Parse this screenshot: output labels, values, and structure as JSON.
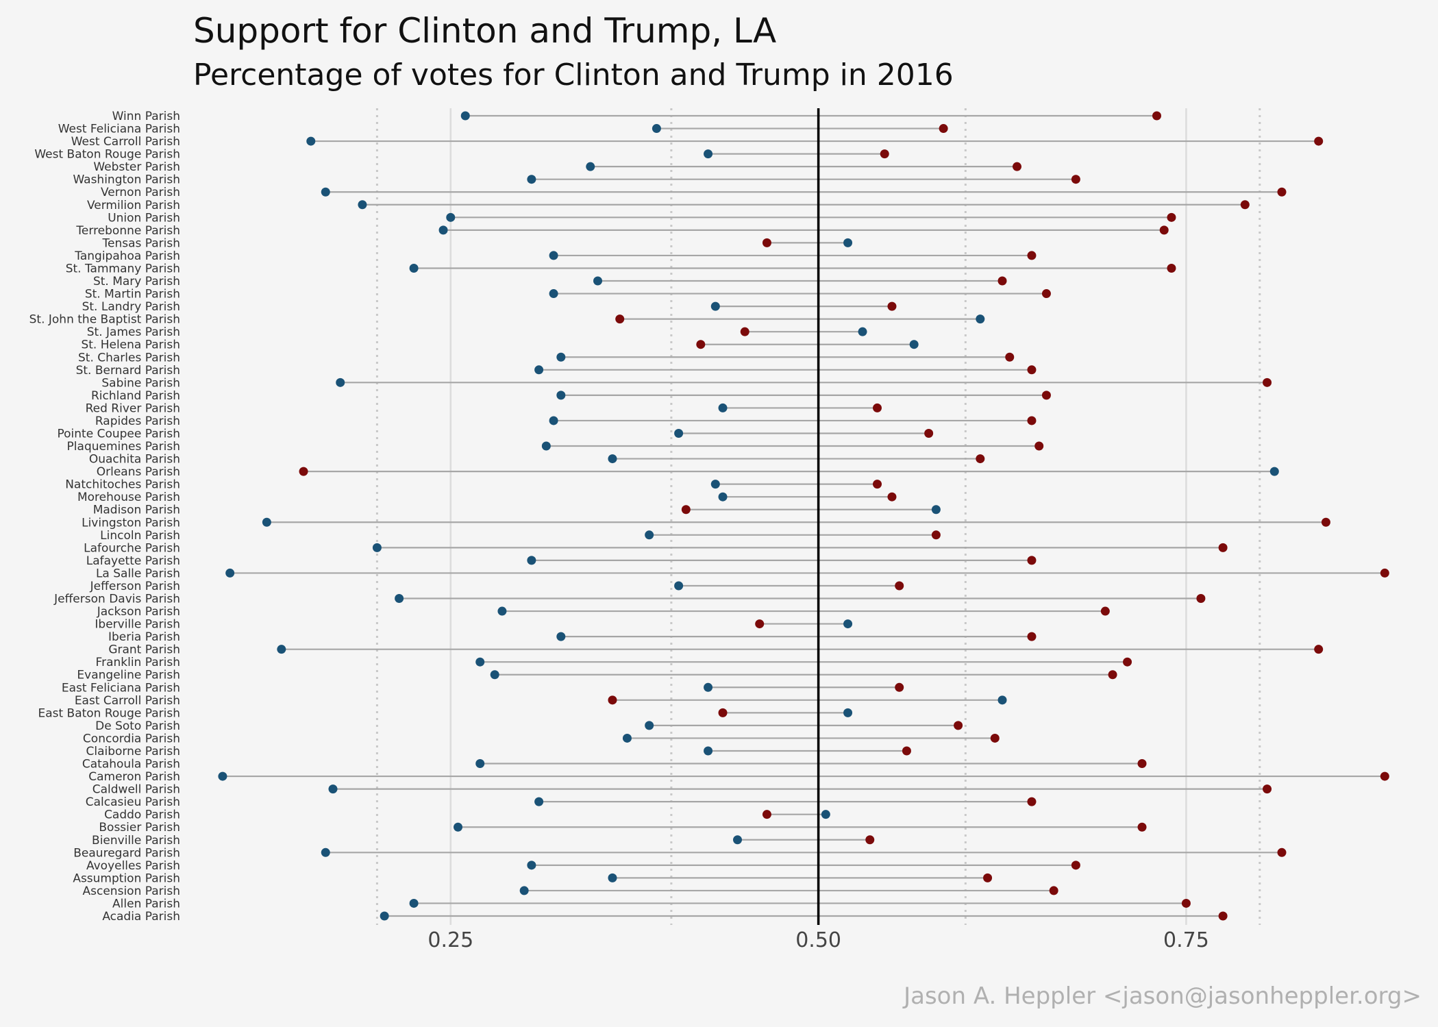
{
  "chart_data": {
    "type": "dumbbell",
    "title": "Support for Clinton and Trump,  LA",
    "subtitle": "Percentage of votes for Clinton and Trump in 2016",
    "caption": "Jason A. Heppler <jason@jasonheppler.org>",
    "x_ticks": [
      0.25,
      0.5,
      0.75
    ],
    "x_tick_labels": [
      "0.25",
      "0.50",
      "0.75"
    ],
    "xlim": [
      0.075,
      0.91
    ],
    "reference_line": 0.5,
    "grid": true,
    "dotted_lines": [
      0.2,
      0.4,
      0.6,
      0.8
    ],
    "colors": {
      "clinton": "#1a5276",
      "trump": "#7b0a0a",
      "segment": "#a6a6a6",
      "reference": "#000000",
      "major_grid": "#dcdcdc",
      "dotted_grid": "#c8c8c8"
    },
    "series": [
      {
        "name": "Clinton",
        "color": "#1a5276"
      },
      {
        "name": "Trump",
        "color": "#7b0a0a"
      }
    ],
    "parishes": [
      {
        "name": "Winn Parish",
        "clinton": 0.26,
        "trump": 0.73
      },
      {
        "name": "West Feliciana Parish",
        "clinton": 0.39,
        "trump": 0.585
      },
      {
        "name": "West Carroll Parish",
        "clinton": 0.155,
        "trump": 0.84
      },
      {
        "name": "West Baton Rouge Parish",
        "clinton": 0.425,
        "trump": 0.545
      },
      {
        "name": "Webster Parish",
        "clinton": 0.345,
        "trump": 0.635
      },
      {
        "name": "Washington Parish",
        "clinton": 0.305,
        "trump": 0.675
      },
      {
        "name": "Vernon Parish",
        "clinton": 0.165,
        "trump": 0.815
      },
      {
        "name": "Vermilion Parish",
        "clinton": 0.19,
        "trump": 0.79
      },
      {
        "name": "Union Parish",
        "clinton": 0.25,
        "trump": 0.74
      },
      {
        "name": "Terrebonne Parish",
        "clinton": 0.245,
        "trump": 0.735
      },
      {
        "name": "Tensas Parish",
        "clinton": 0.52,
        "trump": 0.465
      },
      {
        "name": "Tangipahoa Parish",
        "clinton": 0.32,
        "trump": 0.645
      },
      {
        "name": "St. Tammany Parish",
        "clinton": 0.225,
        "trump": 0.74
      },
      {
        "name": "St. Mary Parish",
        "clinton": 0.35,
        "trump": 0.625
      },
      {
        "name": "St. Martin Parish",
        "clinton": 0.32,
        "trump": 0.655
      },
      {
        "name": "St. Landry Parish",
        "clinton": 0.43,
        "trump": 0.55
      },
      {
        "name": "St. John the Baptist Parish",
        "clinton": 0.61,
        "trump": 0.365
      },
      {
        "name": "St. James Parish",
        "clinton": 0.53,
        "trump": 0.45
      },
      {
        "name": "St. Helena Parish",
        "clinton": 0.565,
        "trump": 0.42
      },
      {
        "name": "St. Charles Parish",
        "clinton": 0.325,
        "trump": 0.63
      },
      {
        "name": "St. Bernard Parish",
        "clinton": 0.31,
        "trump": 0.645
      },
      {
        "name": "Sabine Parish",
        "clinton": 0.175,
        "trump": 0.805
      },
      {
        "name": "Richland Parish",
        "clinton": 0.325,
        "trump": 0.655
      },
      {
        "name": "Red River Parish",
        "clinton": 0.435,
        "trump": 0.54
      },
      {
        "name": "Rapides Parish",
        "clinton": 0.32,
        "trump": 0.645
      },
      {
        "name": "Pointe Coupee Parish",
        "clinton": 0.405,
        "trump": 0.575
      },
      {
        "name": "Plaquemines Parish",
        "clinton": 0.315,
        "trump": 0.65
      },
      {
        "name": "Ouachita Parish",
        "clinton": 0.36,
        "trump": 0.61
      },
      {
        "name": "Orleans Parish",
        "clinton": 0.81,
        "trump": 0.15
      },
      {
        "name": "Natchitoches Parish",
        "clinton": 0.43,
        "trump": 0.54
      },
      {
        "name": "Morehouse Parish",
        "clinton": 0.435,
        "trump": 0.55
      },
      {
        "name": "Madison Parish",
        "clinton": 0.58,
        "trump": 0.41
      },
      {
        "name": "Livingston Parish",
        "clinton": 0.125,
        "trump": 0.845
      },
      {
        "name": "Lincoln Parish",
        "clinton": 0.385,
        "trump": 0.58
      },
      {
        "name": "Lafourche Parish",
        "clinton": 0.2,
        "trump": 0.775
      },
      {
        "name": "Lafayette Parish",
        "clinton": 0.305,
        "trump": 0.645
      },
      {
        "name": "La Salle Parish",
        "clinton": 0.1,
        "trump": 0.885
      },
      {
        "name": "Jefferson Parish",
        "clinton": 0.405,
        "trump": 0.555
      },
      {
        "name": "Jefferson Davis Parish",
        "clinton": 0.215,
        "trump": 0.76
      },
      {
        "name": "Jackson Parish",
        "clinton": 0.285,
        "trump": 0.695
      },
      {
        "name": "Iberville Parish",
        "clinton": 0.52,
        "trump": 0.46
      },
      {
        "name": "Iberia Parish",
        "clinton": 0.325,
        "trump": 0.645
      },
      {
        "name": "Grant Parish",
        "clinton": 0.135,
        "trump": 0.84
      },
      {
        "name": "Franklin Parish",
        "clinton": 0.27,
        "trump": 0.71
      },
      {
        "name": "Evangeline Parish",
        "clinton": 0.28,
        "trump": 0.7
      },
      {
        "name": "East Feliciana Parish",
        "clinton": 0.425,
        "trump": 0.555
      },
      {
        "name": "East Carroll Parish",
        "clinton": 0.625,
        "trump": 0.36
      },
      {
        "name": "East Baton Rouge Parish",
        "clinton": 0.52,
        "trump": 0.435
      },
      {
        "name": "De Soto Parish",
        "clinton": 0.385,
        "trump": 0.595
      },
      {
        "name": "Concordia Parish",
        "clinton": 0.37,
        "trump": 0.62
      },
      {
        "name": "Claiborne Parish",
        "clinton": 0.425,
        "trump": 0.56
      },
      {
        "name": "Catahoula Parish",
        "clinton": 0.27,
        "trump": 0.72
      },
      {
        "name": "Cameron Parish",
        "clinton": 0.095,
        "trump": 0.885
      },
      {
        "name": "Caldwell Parish",
        "clinton": 0.17,
        "trump": 0.805
      },
      {
        "name": "Calcasieu Parish",
        "clinton": 0.31,
        "trump": 0.645
      },
      {
        "name": "Caddo Parish",
        "clinton": 0.505,
        "trump": 0.465
      },
      {
        "name": "Bossier Parish",
        "clinton": 0.255,
        "trump": 0.72
      },
      {
        "name": "Bienville Parish",
        "clinton": 0.445,
        "trump": 0.535
      },
      {
        "name": "Beauregard Parish",
        "clinton": 0.165,
        "trump": 0.815
      },
      {
        "name": "Avoyelles Parish",
        "clinton": 0.305,
        "trump": 0.675
      },
      {
        "name": "Assumption Parish",
        "clinton": 0.36,
        "trump": 0.615
      },
      {
        "name": "Ascension Parish",
        "clinton": 0.3,
        "trump": 0.66
      },
      {
        "name": "Allen Parish",
        "clinton": 0.225,
        "trump": 0.75
      },
      {
        "name": "Acadia Parish",
        "clinton": 0.205,
        "trump": 0.775
      }
    ]
  }
}
